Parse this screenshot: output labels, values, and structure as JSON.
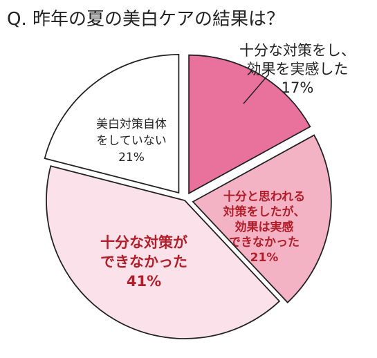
{
  "chart_data": {
    "type": "pie",
    "title": "Q. 昨年の夏の美白ケアの結果は？",
    "slices": [
      {
        "lines": [
          "十分な対策をし、",
          "効果を実感した",
          "17%"
        ],
        "value": 17,
        "color": "#e8729b"
      },
      {
        "lines": [
          "十分と思われる",
          "対策をしたが、",
          "効果は実感",
          "できなかった",
          "21%"
        ],
        "value": 21,
        "color": "#f3b3c5"
      },
      {
        "lines": [
          "十分な対策が",
          "できなかった",
          "41%"
        ],
        "value": 41,
        "color": "#fbe1ea"
      },
      {
        "lines": [
          "美白対策自体",
          "をしていない",
          "21%"
        ],
        "value": 21,
        "color": "#ffffff"
      }
    ],
    "label_colors": {
      "outside": "#222222",
      "inside_dark": "#b01e2a",
      "inside_plain": "#222222"
    }
  }
}
